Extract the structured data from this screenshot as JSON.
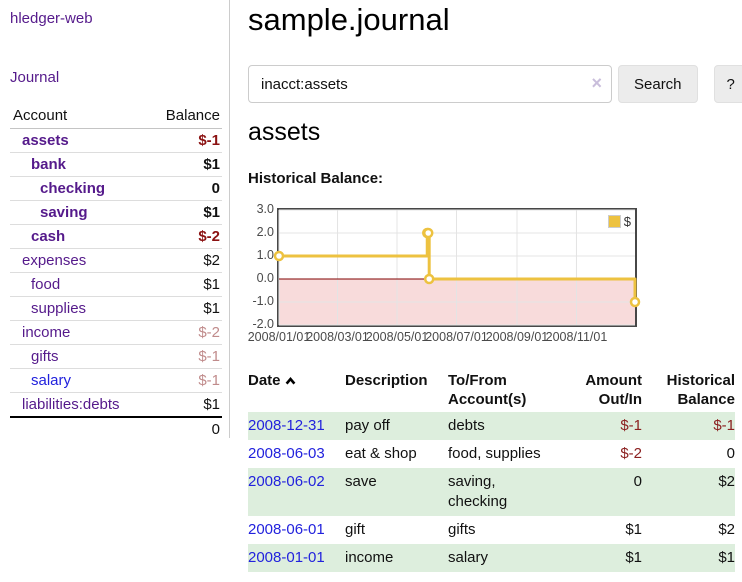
{
  "brand": "hledger-web",
  "nav": {
    "journal": "Journal"
  },
  "sidebar": {
    "col_account": "Account",
    "col_balance": "Balance",
    "accounts": [
      {
        "name": "assets",
        "depth": 0,
        "emph": true,
        "balance": "$-1",
        "balance_style": "neg"
      },
      {
        "name": "bank",
        "depth": 1,
        "emph": true,
        "balance": "$1",
        "balance_style": ""
      },
      {
        "name": "checking",
        "depth": 2,
        "emph": true,
        "balance": "0",
        "balance_style": ""
      },
      {
        "name": "saving",
        "depth": 2,
        "emph": true,
        "balance": "$1",
        "balance_style": ""
      },
      {
        "name": "cash",
        "depth": 1,
        "emph": true,
        "balance": "$-2",
        "balance_style": "neg"
      },
      {
        "name": "expenses",
        "depth": 0,
        "emph": false,
        "balance": "$2",
        "balance_style": ""
      },
      {
        "name": "food",
        "depth": 1,
        "emph": false,
        "balance": "$1",
        "balance_style": ""
      },
      {
        "name": "supplies",
        "depth": 1,
        "emph": false,
        "balance": "$1",
        "balance_style": ""
      },
      {
        "name": "income",
        "depth": 0,
        "emph": false,
        "balance": "$-2",
        "balance_style": "neg-faded"
      },
      {
        "name": "gifts",
        "depth": 1,
        "emph": false,
        "balance": "$-1",
        "balance_style": "neg-faded"
      },
      {
        "name": "salary",
        "depth": 1,
        "emph": false,
        "link_style": "blue",
        "balance": "$-1",
        "balance_style": "neg-faded"
      },
      {
        "name": "liabilities:debts",
        "depth": 0,
        "emph": false,
        "balance": "$1",
        "balance_style": ""
      }
    ],
    "total": "0"
  },
  "main": {
    "title": "sample.journal",
    "search": {
      "value": "inacct:assets",
      "clear": "×",
      "search_button": "Search",
      "help_button": "?"
    },
    "account_heading": "assets",
    "chart_label": "Historical Balance:"
  },
  "chart_data": {
    "type": "line",
    "title": "Historical Balance of assets",
    "step": true,
    "series": [
      {
        "name": "$",
        "color": "#edc240",
        "points_note": "x = days since 2008-01-01, y = historical balance in $",
        "points": [
          [
            0,
            1
          ],
          [
            152,
            2
          ],
          [
            153,
            2
          ],
          [
            154,
            0
          ],
          [
            365,
            -1
          ]
        ]
      }
    ],
    "xlim": [
      0,
      365
    ],
    "ylim": [
      -2,
      3
    ],
    "x_ticks": [
      {
        "pos": 0,
        "label": "2008/01/01"
      },
      {
        "pos": 60,
        "label": "2008/03/01"
      },
      {
        "pos": 121,
        "label": "2008/05/01"
      },
      {
        "pos": 182,
        "label": "2008/07/01"
      },
      {
        "pos": 244,
        "label": "2008/09/01"
      },
      {
        "pos": 305,
        "label": "2008/11/01"
      }
    ],
    "y_ticks": [
      {
        "pos": 3,
        "label": "3.0"
      },
      {
        "pos": 2,
        "label": "2.0"
      },
      {
        "pos": 1,
        "label": "1.0"
      },
      {
        "pos": 0,
        "label": "0.0"
      },
      {
        "pos": -1,
        "label": "-1.0"
      },
      {
        "pos": -2,
        "label": "-2.0"
      }
    ],
    "legend": "$",
    "legend_position": "top-right",
    "grid": true,
    "negative_region_color": "#f8dbdb",
    "zero_line_color": "#800000",
    "gridline_color": "#e4e4e4"
  },
  "register": {
    "headers": {
      "date": "Date",
      "sort": "ascending",
      "description": "Description",
      "tofrom_line1": "To/From",
      "tofrom_line2": "Account(s)",
      "amount_line1": "Amount",
      "amount_line2": "Out/In",
      "balance_line1": "Historical",
      "balance_line2": "Balance"
    },
    "rows": [
      {
        "date": "2008-12-31",
        "description": "pay off",
        "accounts": "debts",
        "amount": "$-1",
        "amount_style": "neg",
        "balance": "$-1",
        "balance_style": "neg"
      },
      {
        "date": "2008-06-03",
        "description": "eat & shop",
        "accounts": "food, supplies",
        "amount": "$-2",
        "amount_style": "neg",
        "balance": "0",
        "balance_style": ""
      },
      {
        "date": "2008-06-02",
        "description": "save",
        "accounts": "saving, checking",
        "amount": "0",
        "amount_style": "",
        "balance": "$2",
        "balance_style": ""
      },
      {
        "date": "2008-06-01",
        "description": "gift",
        "accounts": "gifts",
        "amount": "$1",
        "amount_style": "",
        "balance": "$2",
        "balance_style": ""
      },
      {
        "date": "2008-01-01",
        "description": "income",
        "accounts": "salary",
        "amount": "$1",
        "amount_style": "",
        "balance": "$1",
        "balance_style": ""
      }
    ]
  },
  "colors": {
    "accent_purple": "#551a8b",
    "link_blue": "#2222dd",
    "negative_strong": "#8b1212",
    "negative_faded": "#c08b8b",
    "row_stripe_green": "#ddeedd",
    "chart_line_gold": "#edc240",
    "chart_negative_region": "#f8dbdb",
    "chart_zero_line": "#800000"
  }
}
